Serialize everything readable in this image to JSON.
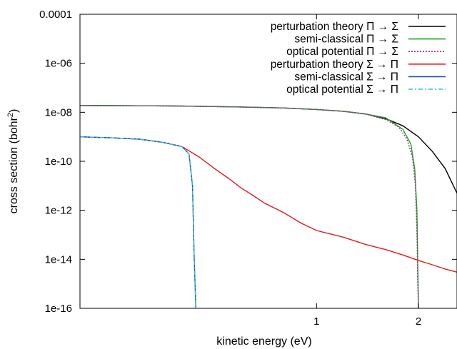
{
  "chart_data": {
    "type": "line",
    "xlabel": "kinetic energy (eV)",
    "ylabel": "cross section (bohr",
    "ylabel_sup": "2",
    "ylabel_close": ")",
    "x_scale": "log",
    "y_scale": "log",
    "xlim": [
      0.2,
      2.6
    ],
    "ylim": [
      1e-16,
      0.0001
    ],
    "x_ticks": [
      {
        "value": 1,
        "label": "1"
      },
      {
        "value": 2,
        "label": "2"
      }
    ],
    "y_ticks": [
      {
        "value": 1e-16,
        "label": "1e-16"
      },
      {
        "value": 1e-14,
        "label": "1e-14"
      },
      {
        "value": 1e-12,
        "label": "1e-12"
      },
      {
        "value": 1e-10,
        "label": "1e-10"
      },
      {
        "value": 1e-08,
        "label": "1e-08"
      },
      {
        "value": 1e-06,
        "label": "1e-06"
      },
      {
        "value": 0.0001,
        "label": "0.0001"
      }
    ],
    "legend_position": "top-right",
    "series": [
      {
        "name": "perturbation theory Π → Σ",
        "color": "#000000",
        "dash": "",
        "x": [
          0.2,
          0.3,
          0.4,
          0.6,
          0.8,
          1.0,
          1.2,
          1.4,
          1.6,
          1.8,
          2.0,
          2.2,
          2.4,
          2.6
        ],
        "y": [
          1.9e-08,
          1.85e-08,
          1.8e-08,
          1.65e-08,
          1.5e-08,
          1.3e-08,
          1.1e-08,
          8.5e-09,
          5.5e-09,
          2.8e-09,
          1e-09,
          2.5e-10,
          5e-11,
          5e-12
        ]
      },
      {
        "name": "semi-classical Π → Σ",
        "color": "#21a121",
        "dash": "",
        "x": [
          0.2,
          0.3,
          0.4,
          0.6,
          0.8,
          1.0,
          1.2,
          1.4,
          1.6,
          1.8,
          1.9,
          1.95,
          1.98,
          1.99,
          2.0
        ],
        "y": [
          1.9e-08,
          1.85e-08,
          1.8e-08,
          1.65e-08,
          1.5e-08,
          1.3e-08,
          1.1e-08,
          8.5e-09,
          6e-09,
          2e-09,
          5e-10,
          5e-11,
          1e-12,
          1e-14,
          1e-16
        ]
      },
      {
        "name": "optical potential Π → Σ",
        "color": "#9b2a9b",
        "dash": "2,2",
        "x": [
          0.2,
          0.3,
          0.4,
          0.6,
          0.8,
          1.0,
          1.2,
          1.4,
          1.6,
          1.75,
          1.85,
          1.92,
          1.96,
          1.98,
          1.99,
          2.0
        ],
        "y": [
          1.9e-08,
          1.85e-08,
          1.8e-08,
          1.65e-08,
          1.5e-08,
          1.3e-08,
          1.1e-08,
          8.5e-09,
          5e-09,
          2.5e-09,
          8e-10,
          1.5e-10,
          1e-11,
          1e-13,
          1e-15,
          1e-16
        ]
      },
      {
        "name": "perturbation theory Σ → Π",
        "color": "#e31a1c",
        "dash": "",
        "x": [
          0.2,
          0.25,
          0.3,
          0.35,
          0.4,
          0.45,
          0.5,
          0.55,
          0.6,
          0.65,
          0.7,
          0.8,
          0.9,
          1.0,
          1.2,
          1.4,
          1.6,
          1.8,
          2.0,
          2.2,
          2.4,
          2.6
        ],
        "y": [
          1e-09,
          9e-10,
          8e-10,
          6e-10,
          4e-10,
          1.5e-10,
          5e-11,
          2e-11,
          8e-12,
          4e-12,
          2e-12,
          8e-13,
          3e-13,
          1.5e-13,
          8e-14,
          4e-14,
          2.5e-14,
          1.5e-14,
          9e-15,
          6e-15,
          4e-15,
          3e-15
        ]
      },
      {
        "name": "semi-classical Σ → Π",
        "color": "#1f4e9e",
        "dash": "",
        "x": [
          0.2,
          0.25,
          0.3,
          0.35,
          0.4,
          0.42,
          0.43,
          0.435,
          0.44
        ],
        "y": [
          1e-09,
          9e-10,
          8e-10,
          6e-10,
          4e-10,
          2e-10,
          1e-11,
          1e-14,
          1e-16
        ]
      },
      {
        "name": "optical potential Σ → Π",
        "color": "#2bbfd6",
        "dash": "6,3,2,3",
        "x": [
          0.2,
          0.25,
          0.3,
          0.35,
          0.4,
          0.42,
          0.43,
          0.435,
          0.44
        ],
        "y": [
          1e-09,
          9e-10,
          8e-10,
          6e-10,
          4e-10,
          2e-10,
          1e-11,
          1e-14,
          1e-16
        ]
      }
    ]
  }
}
